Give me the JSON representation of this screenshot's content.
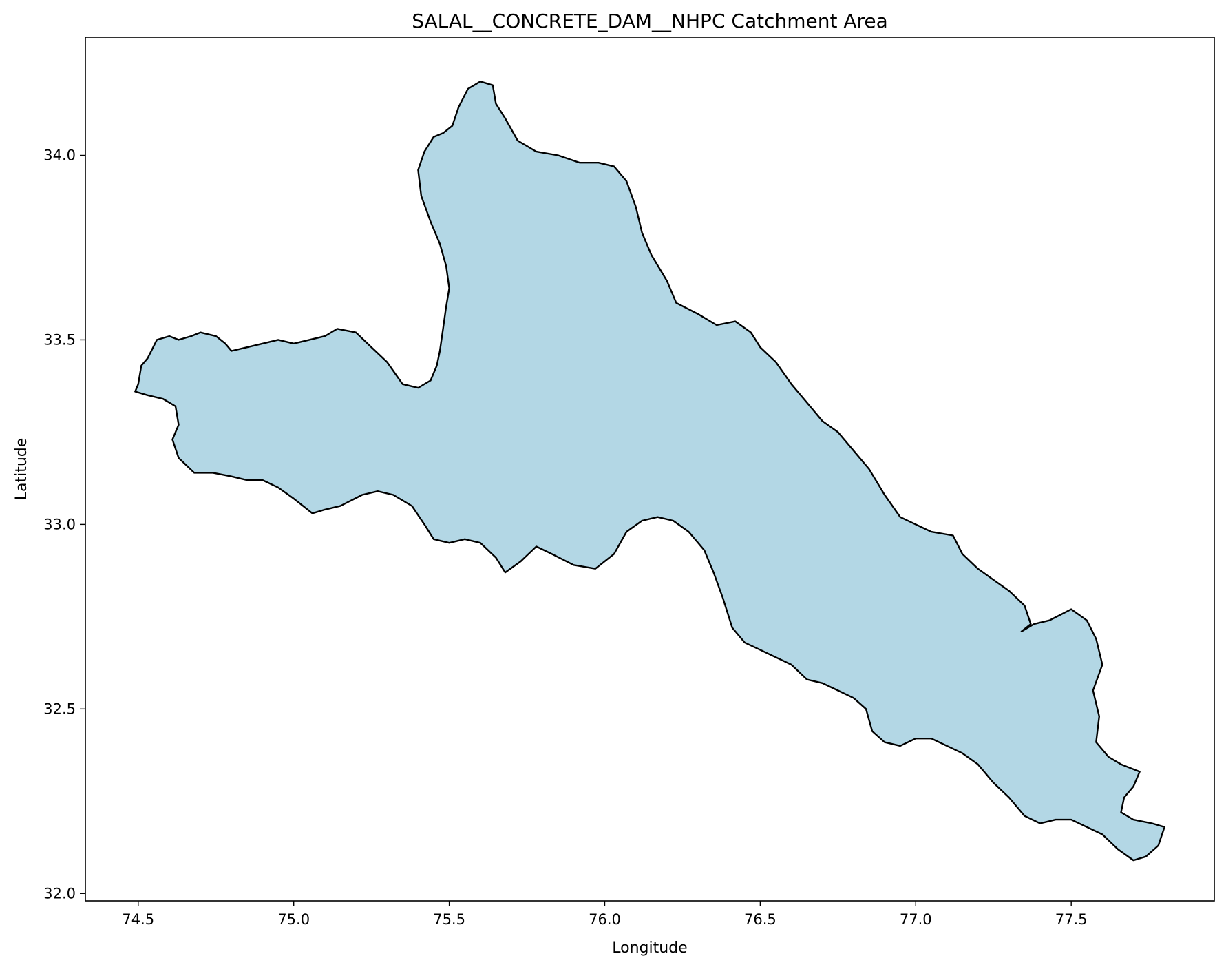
{
  "title": "SALAL__CONCRETE_DAM__NHPC Catchment Area",
  "xlabel": "Longitude",
  "ylabel": "Latitude",
  "colors": {
    "fill": "#b3d7e5",
    "edge": "#000000"
  },
  "chart_data": {
    "type": "map",
    "title": "SALAL__CONCRETE_DAM__NHPC Catchment Area",
    "xlabel": "Longitude",
    "ylabel": "Latitude",
    "xlim": [
      74.33,
      77.96
    ],
    "ylim": [
      31.98,
      34.32
    ],
    "xticks": [
      74.5,
      75.0,
      75.5,
      76.0,
      76.5,
      77.0,
      77.5
    ],
    "yticks": [
      32.0,
      32.5,
      33.0,
      33.5,
      34.0
    ],
    "grid": false,
    "series": [
      {
        "polygon": [
          [
            74.49,
            33.36
          ],
          [
            74.5,
            33.38
          ],
          [
            74.51,
            33.43
          ],
          [
            74.53,
            33.45
          ],
          [
            74.56,
            33.5
          ],
          [
            74.6,
            33.51
          ],
          [
            74.63,
            33.5
          ],
          [
            74.67,
            33.51
          ],
          [
            74.7,
            33.52
          ],
          [
            74.75,
            33.51
          ],
          [
            74.78,
            33.49
          ],
          [
            74.8,
            33.47
          ],
          [
            74.85,
            33.48
          ],
          [
            74.9,
            33.49
          ],
          [
            74.95,
            33.5
          ],
          [
            75.0,
            33.49
          ],
          [
            75.05,
            33.5
          ],
          [
            75.1,
            33.51
          ],
          [
            75.14,
            33.53
          ],
          [
            75.2,
            33.52
          ],
          [
            75.25,
            33.48
          ],
          [
            75.3,
            33.44
          ],
          [
            75.35,
            33.38
          ],
          [
            75.4,
            33.37
          ],
          [
            75.44,
            33.39
          ],
          [
            75.46,
            33.43
          ],
          [
            75.47,
            33.47
          ],
          [
            75.48,
            33.53
          ],
          [
            75.49,
            33.59
          ],
          [
            75.5,
            33.64
          ],
          [
            75.49,
            33.7
          ],
          [
            75.47,
            33.76
          ],
          [
            75.44,
            33.82
          ],
          [
            75.41,
            33.89
          ],
          [
            75.4,
            33.96
          ],
          [
            75.42,
            34.01
          ],
          [
            75.45,
            34.05
          ],
          [
            75.48,
            34.06
          ],
          [
            75.51,
            34.08
          ],
          [
            75.53,
            34.13
          ],
          [
            75.56,
            34.18
          ],
          [
            75.6,
            34.2
          ],
          [
            75.64,
            34.19
          ],
          [
            75.65,
            34.14
          ],
          [
            75.68,
            34.1
          ],
          [
            75.72,
            34.04
          ],
          [
            75.78,
            34.01
          ],
          [
            75.85,
            34.0
          ],
          [
            75.92,
            33.98
          ],
          [
            75.98,
            33.98
          ],
          [
            76.03,
            33.97
          ],
          [
            76.07,
            33.93
          ],
          [
            76.1,
            33.86
          ],
          [
            76.12,
            33.79
          ],
          [
            76.15,
            33.73
          ],
          [
            76.2,
            33.66
          ],
          [
            76.23,
            33.6
          ],
          [
            76.3,
            33.57
          ],
          [
            76.36,
            33.54
          ],
          [
            76.42,
            33.55
          ],
          [
            76.47,
            33.52
          ],
          [
            76.5,
            33.48
          ],
          [
            76.55,
            33.44
          ],
          [
            76.6,
            33.38
          ],
          [
            76.65,
            33.33
          ],
          [
            76.7,
            33.28
          ],
          [
            76.75,
            33.25
          ],
          [
            76.8,
            33.2
          ],
          [
            76.85,
            33.15
          ],
          [
            76.9,
            33.08
          ],
          [
            76.95,
            33.02
          ],
          [
            77.0,
            33.0
          ],
          [
            77.05,
            32.98
          ],
          [
            77.12,
            32.97
          ],
          [
            77.15,
            32.92
          ],
          [
            77.2,
            32.88
          ],
          [
            77.25,
            32.85
          ],
          [
            77.3,
            32.82
          ],
          [
            77.35,
            32.78
          ],
          [
            77.37,
            32.73
          ],
          [
            77.34,
            32.71
          ],
          [
            77.38,
            32.73
          ],
          [
            77.43,
            32.74
          ],
          [
            77.5,
            32.77
          ],
          [
            77.55,
            32.74
          ],
          [
            77.58,
            32.69
          ],
          [
            77.6,
            32.62
          ],
          [
            77.57,
            32.55
          ],
          [
            77.59,
            32.48
          ],
          [
            77.58,
            32.41
          ],
          [
            77.62,
            32.37
          ],
          [
            77.66,
            32.35
          ],
          [
            77.72,
            32.33
          ],
          [
            77.7,
            32.29
          ],
          [
            77.67,
            32.26
          ],
          [
            77.66,
            32.22
          ],
          [
            77.7,
            32.2
          ],
          [
            77.76,
            32.19
          ],
          [
            77.8,
            32.18
          ],
          [
            77.78,
            32.13
          ],
          [
            77.74,
            32.1
          ],
          [
            77.7,
            32.09
          ],
          [
            77.65,
            32.12
          ],
          [
            77.6,
            32.16
          ],
          [
            77.55,
            32.18
          ],
          [
            77.5,
            32.2
          ],
          [
            77.45,
            32.2
          ],
          [
            77.4,
            32.19
          ],
          [
            77.35,
            32.21
          ],
          [
            77.3,
            32.26
          ],
          [
            77.25,
            32.3
          ],
          [
            77.2,
            32.35
          ],
          [
            77.15,
            32.38
          ],
          [
            77.1,
            32.4
          ],
          [
            77.05,
            32.42
          ],
          [
            77.0,
            32.42
          ],
          [
            76.95,
            32.4
          ],
          [
            76.9,
            32.41
          ],
          [
            76.86,
            32.44
          ],
          [
            76.84,
            32.5
          ],
          [
            76.8,
            32.53
          ],
          [
            76.75,
            32.55
          ],
          [
            76.7,
            32.57
          ],
          [
            76.65,
            32.58
          ],
          [
            76.6,
            32.62
          ],
          [
            76.55,
            32.64
          ],
          [
            76.5,
            32.66
          ],
          [
            76.45,
            32.68
          ],
          [
            76.41,
            32.72
          ],
          [
            76.38,
            32.8
          ],
          [
            76.35,
            32.87
          ],
          [
            76.32,
            32.93
          ],
          [
            76.27,
            32.98
          ],
          [
            76.22,
            33.01
          ],
          [
            76.17,
            33.02
          ],
          [
            76.12,
            33.01
          ],
          [
            76.07,
            32.98
          ],
          [
            76.03,
            32.92
          ],
          [
            75.97,
            32.88
          ],
          [
            75.9,
            32.89
          ],
          [
            75.83,
            32.92
          ],
          [
            75.78,
            32.94
          ],
          [
            75.73,
            32.9
          ],
          [
            75.68,
            32.87
          ],
          [
            75.65,
            32.91
          ],
          [
            75.6,
            32.95
          ],
          [
            75.55,
            32.96
          ],
          [
            75.5,
            32.95
          ],
          [
            75.45,
            32.96
          ],
          [
            75.42,
            33.0
          ],
          [
            75.38,
            33.05
          ],
          [
            75.32,
            33.08
          ],
          [
            75.27,
            33.09
          ],
          [
            75.22,
            33.08
          ],
          [
            75.15,
            33.05
          ],
          [
            75.1,
            33.04
          ],
          [
            75.06,
            33.03
          ],
          [
            75.0,
            33.07
          ],
          [
            74.95,
            33.1
          ],
          [
            74.9,
            33.12
          ],
          [
            74.85,
            33.12
          ],
          [
            74.8,
            33.13
          ],
          [
            74.74,
            33.14
          ],
          [
            74.68,
            33.14
          ],
          [
            74.63,
            33.18
          ],
          [
            74.61,
            33.23
          ],
          [
            74.63,
            33.27
          ],
          [
            74.62,
            33.32
          ],
          [
            74.58,
            33.34
          ],
          [
            74.53,
            33.35
          ]
        ]
      }
    ]
  }
}
